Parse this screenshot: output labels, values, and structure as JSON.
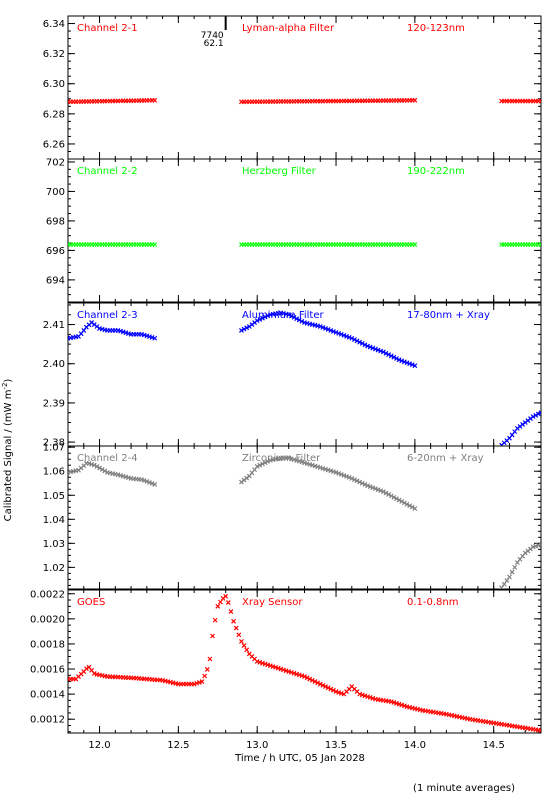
{
  "chart_data": {
    "type": "scatter",
    "xlabel": "Time / h UTC, 05 Jan 2028",
    "ylabel": "Calibrated Signal / (mW m",
    "ylabel_sup": "-2",
    "ylabel_end": ")",
    "footnote": "(1 minute averages)",
    "xlim": [
      11.8,
      14.8
    ],
    "xticks": [
      12.0,
      12.5,
      13.0,
      13.5,
      14.0,
      14.5
    ],
    "xtick_labels": [
      "12.0",
      "12.5",
      "13.0",
      "13.5",
      "14.0",
      "14.5"
    ],
    "marker": {
      "x": 12.8,
      "line1": "7740",
      "line2": "62.1"
    },
    "panels": [
      {
        "labels": [
          "Channel 2-1",
          "Lyman-alpha Filter",
          "120-123nm"
        ],
        "color": "#ff0000",
        "ylim": [
          6.25,
          6.345
        ],
        "yticks": [
          6.26,
          6.28,
          6.3,
          6.32,
          6.34
        ],
        "ytick_labels": [
          "6.26",
          "6.28",
          "6.30",
          "6.32",
          "6.34"
        ],
        "segments": [
          {
            "x0": 11.8,
            "x1": 12.35,
            "points": [
              [
                11.8,
                6.288
              ],
              [
                12.35,
                6.289
              ]
            ]
          },
          {
            "x0": 12.9,
            "x1": 14.0,
            "points": [
              [
                12.9,
                6.288
              ],
              [
                13.5,
                6.2885
              ],
              [
                14.0,
                6.289
              ]
            ]
          },
          {
            "x0": 14.55,
            "x1": 14.8,
            "points": [
              [
                14.55,
                6.2885
              ],
              [
                14.8,
                6.2885
              ]
            ]
          }
        ]
      },
      {
        "labels": [
          "Channel 2-2",
          "Herzberg Filter",
          "190-222nm"
        ],
        "color": "#00ff00",
        "ylim": [
          692.5,
          702.2
        ],
        "yticks": [
          694,
          696,
          698,
          700,
          702
        ],
        "ytick_labels": [
          "694",
          "696",
          "698",
          "700",
          "702"
        ],
        "segments": [
          {
            "x0": 11.8,
            "x1": 12.35,
            "points": [
              [
                11.8,
                696.4
              ],
              [
                12.35,
                696.4
              ]
            ]
          },
          {
            "x0": 12.9,
            "x1": 14.0,
            "points": [
              [
                12.9,
                696.4
              ],
              [
                14.0,
                696.4
              ]
            ]
          },
          {
            "x0": 14.55,
            "x1": 14.8,
            "points": [
              [
                14.55,
                696.4
              ],
              [
                14.8,
                696.4
              ]
            ]
          }
        ]
      },
      {
        "labels": [
          "Channel 2-3",
          "Aluminium Filter",
          "17-80nm + Xray"
        ],
        "color": "#0000ff",
        "ylim": [
          2.379,
          2.4155
        ],
        "yticks": [
          2.38,
          2.39,
          2.4,
          2.41
        ],
        "ytick_labels": [
          "2.38",
          "2.39",
          "2.40",
          "2.41"
        ],
        "segments": [
          {
            "x0": 11.8,
            "x1": 12.35,
            "points": [
              [
                11.8,
                2.4065
              ],
              [
                11.87,
                2.407
              ],
              [
                11.92,
                2.4095
              ],
              [
                11.95,
                2.4105
              ],
              [
                12.0,
                2.409
              ],
              [
                12.05,
                2.4085
              ],
              [
                12.12,
                2.4085
              ],
              [
                12.2,
                2.4075
              ],
              [
                12.27,
                2.4075
              ],
              [
                12.35,
                2.4065
              ]
            ]
          },
          {
            "x0": 12.9,
            "x1": 14.0,
            "points": [
              [
                12.9,
                2.4085
              ],
              [
                12.95,
                2.4095
              ],
              [
                13.0,
                2.411
              ],
              [
                13.08,
                2.4125
              ],
              [
                13.15,
                2.413
              ],
              [
                13.2,
                2.4125
              ],
              [
                13.3,
                2.4105
              ],
              [
                13.4,
                2.4095
              ],
              [
                13.5,
                2.408
              ],
              [
                13.6,
                2.4065
              ],
              [
                13.7,
                2.4045
              ],
              [
                13.8,
                2.403
              ],
              [
                13.9,
                2.401
              ],
              [
                14.0,
                2.3995
              ]
            ]
          },
          {
            "x0": 14.55,
            "x1": 14.8,
            "points": [
              [
                14.55,
                2.3792
              ],
              [
                14.6,
                2.381
              ],
              [
                14.65,
                2.3835
              ],
              [
                14.7,
                2.385
              ],
              [
                14.75,
                2.3865
              ],
              [
                14.8,
                2.3875
              ]
            ]
          }
        ]
      },
      {
        "labels": [
          "Channel 2-4",
          "Zirconium Filter",
          "6-20nm + Xray"
        ],
        "color": "#808080",
        "ylim": [
          1.011,
          1.0705
        ],
        "yticks": [
          1.02,
          1.03,
          1.04,
          1.05,
          1.06,
          1.07
        ],
        "ytick_labels": [
          "1.02",
          "1.03",
          "1.04",
          "1.05",
          "1.06",
          "1.07"
        ],
        "segments": [
          {
            "x0": 11.8,
            "x1": 12.35,
            "points": [
              [
                11.8,
                1.0595
              ],
              [
                11.87,
                1.0605
              ],
              [
                11.92,
                1.0635
              ],
              [
                11.97,
                1.0625
              ],
              [
                12.05,
                1.0595
              ],
              [
                12.12,
                1.0585
              ],
              [
                12.2,
                1.057
              ],
              [
                12.27,
                1.0565
              ],
              [
                12.35,
                1.0545
              ]
            ]
          },
          {
            "x0": 12.9,
            "x1": 14.0,
            "points": [
              [
                12.9,
                1.0555
              ],
              [
                12.95,
                1.058
              ],
              [
                13.0,
                1.062
              ],
              [
                13.08,
                1.0645
              ],
              [
                13.15,
                1.0655
              ],
              [
                13.2,
                1.0655
              ],
              [
                13.3,
                1.0635
              ],
              [
                13.4,
                1.0615
              ],
              [
                13.5,
                1.0595
              ],
              [
                13.6,
                1.057
              ],
              [
                13.7,
                1.054
              ],
              [
                13.8,
                1.0515
              ],
              [
                13.9,
                1.048
              ],
              [
                14.0,
                1.0445
              ]
            ]
          },
          {
            "x0": 14.55,
            "x1": 14.8,
            "points": [
              [
                14.55,
                1.0115
              ],
              [
                14.6,
                1.016
              ],
              [
                14.65,
                1.022
              ],
              [
                14.7,
                1.026
              ],
              [
                14.75,
                1.0285
              ],
              [
                14.8,
                1.0295
              ]
            ]
          }
        ]
      },
      {
        "labels": [
          "GOES",
          "Xray Sensor",
          "0.1-0.8nm"
        ],
        "color": "#ff0000",
        "ylim": [
          0.00109,
          0.00223
        ],
        "yticks": [
          0.0012,
          0.0014,
          0.0016,
          0.0018,
          0.002,
          0.0022
        ],
        "ytick_labels": [
          "0.0012",
          "0.0014",
          "0.0016",
          "0.0018",
          "0.0020",
          "0.0022"
        ],
        "segments": [
          {
            "x0": 11.8,
            "x1": 14.8,
            "points": [
              [
                11.8,
                0.00152
              ],
              [
                11.85,
                0.00152
              ],
              [
                11.9,
                0.00158
              ],
              [
                11.93,
                0.00162
              ],
              [
                11.97,
                0.00156
              ],
              [
                12.05,
                0.00154
              ],
              [
                12.2,
                0.00153
              ],
              [
                12.3,
                0.00152
              ],
              [
                12.4,
                0.00151
              ],
              [
                12.5,
                0.00148
              ],
              [
                12.6,
                0.00148
              ],
              [
                12.65,
                0.0015
              ],
              [
                12.68,
                0.00158
              ],
              [
                12.7,
                0.00168
              ],
              [
                12.72,
                0.0019
              ],
              [
                12.75,
                0.0021
              ],
              [
                12.78,
                0.00216
              ],
              [
                12.8,
                0.00218
              ],
              [
                12.82,
                0.00212
              ],
              [
                12.85,
                0.00198
              ],
              [
                12.9,
                0.00182
              ],
              [
                12.95,
                0.00172
              ],
              [
                13.0,
                0.00166
              ],
              [
                13.1,
                0.00162
              ],
              [
                13.2,
                0.00158
              ],
              [
                13.3,
                0.00154
              ],
              [
                13.4,
                0.00148
              ],
              [
                13.5,
                0.00142
              ],
              [
                13.55,
                0.0014
              ],
              [
                13.6,
                0.00146
              ],
              [
                13.65,
                0.0014
              ],
              [
                13.75,
                0.00136
              ],
              [
                13.85,
                0.00134
              ],
              [
                13.95,
                0.0013
              ],
              [
                14.05,
                0.00127
              ],
              [
                14.2,
                0.00124
              ],
              [
                14.35,
                0.0012
              ],
              [
                14.5,
                0.00117
              ],
              [
                14.65,
                0.00114
              ],
              [
                14.8,
                0.00111
              ]
            ]
          }
        ]
      }
    ]
  }
}
